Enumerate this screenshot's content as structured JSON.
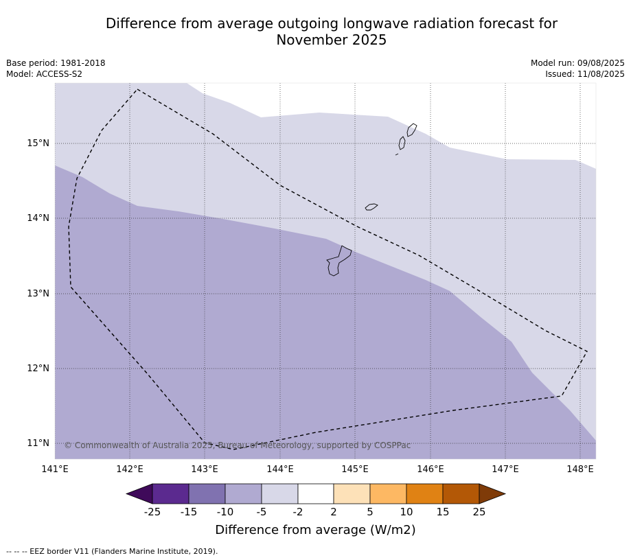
{
  "title_line1": "Difference from average outgoing longwave radiation forecast for",
  "title_line2": "November 2025",
  "base_period": "Base period: 1981-2018",
  "model": "Model: ACCESS-S2",
  "model_run": "Model run: 09/08/2025",
  "issued": "Issued: 11/08/2025",
  "copyright": "© Commonwealth of Australia 2025, Bureau of Meteorology, supported by COSPPac",
  "lat_labels": [
    "15°N",
    "14°N",
    "13°N",
    "12°N",
    "11°N"
  ],
  "lon_labels": [
    "141°E",
    "142°E",
    "143°E",
    "144°E",
    "145°E",
    "146°E",
    "147°E",
    "148°E"
  ],
  "colorbar": {
    "title": "Difference from average (W/m2)",
    "tick_labels": [
      "-25",
      "-15",
      "-10",
      "-5",
      "-2",
      "2",
      "5",
      "10",
      "15",
      "25"
    ],
    "colors": [
      "#3f0a5a",
      "#5b2a8f",
      "#8072b0",
      "#b0aad1",
      "#d8d8e8",
      "#ffffff",
      "#fde1b8",
      "#fdb863",
      "#e08214",
      "#b35806",
      "#7f3b08"
    ]
  },
  "fill_colors": {
    "band_minus10_minus5": "#b0aad1",
    "band_minus5_minus2": "#d8d8e8"
  },
  "footer": "-- -- -- EEZ border V11 (Flanders Marine Institute, 2019)."
}
